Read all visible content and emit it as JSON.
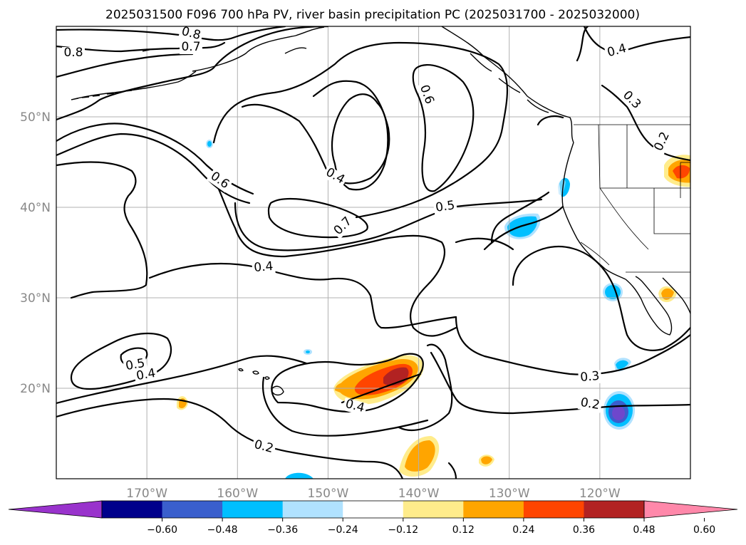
{
  "title": "2025031500 F096 700 hPa PV, river basin precipitation PC (2025031700 - 2025032000)",
  "lat_labels": [
    {
      "text": "50°N",
      "lat": 50
    },
    {
      "text": "40°N",
      "lat": 40
    },
    {
      "text": "30°N",
      "lat": 30
    },
    {
      "text": "20°N",
      "lat": 20
    }
  ],
  "lon_labels": [
    {
      "text": "170°W",
      "lon": -170
    },
    {
      "text": "160°W",
      "lon": -160
    },
    {
      "text": "150°W",
      "lon": -150
    },
    {
      "text": "140°W",
      "lon": -140
    },
    {
      "text": "130°W",
      "lon": -130
    },
    {
      "text": "120°W",
      "lon": -120
    }
  ],
  "map_extent": {
    "lon_min": -180,
    "lon_max": -110,
    "lat_min": 10,
    "lat_max": 60
  },
  "gridlines": true,
  "contour_labels": [
    "0.8",
    "0.7",
    "0.8",
    "0.6",
    "0.6",
    "0.4",
    "0.7",
    "0.5",
    "0.4",
    "0.4",
    "0.3",
    "0.2",
    "0.5",
    "0.4",
    "0.4",
    "0.2",
    "0.3",
    "0.2"
  ],
  "colorbar": {
    "extend": "both",
    "ticks": [
      "−0.60",
      "−0.48",
      "−0.36",
      "−0.24",
      "−0.12",
      "0.12",
      "0.24",
      "0.36",
      "0.48",
      "0.60"
    ],
    "colors": [
      "#9933cc",
      "#00008b",
      "#3a5fcd",
      "#00bfff",
      "#b0e2ff",
      "#ffffff",
      "#ffec8b",
      "#ffa500",
      "#ff4500",
      "#b22222",
      "#ff88aa"
    ]
  },
  "precip_blobs": [
    {
      "label": "hawaii-east-positive",
      "sign": "positive",
      "peak": 0.55
    },
    {
      "label": "baja-southwest-negative",
      "sign": "negative",
      "peak": -0.55
    },
    {
      "label": "central-california-offshore-negative",
      "sign": "negative",
      "peak": -0.3
    },
    {
      "label": "idaho-positive",
      "sign": "positive",
      "peak": 0.45
    },
    {
      "label": "south-pacific-positive",
      "sign": "positive",
      "peak": 0.35
    },
    {
      "label": "southern-california-negative",
      "sign": "negative",
      "peak": -0.3
    },
    {
      "label": "gulf-of-california-positive",
      "sign": "positive",
      "peak": 0.3
    }
  ]
}
